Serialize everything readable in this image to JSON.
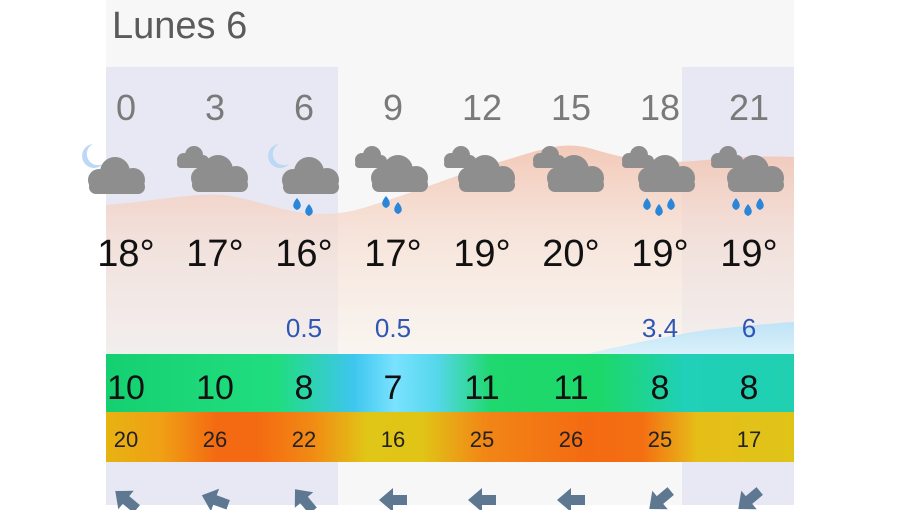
{
  "day_title": "Lunes 6",
  "colors": {
    "temp_band": "#f2c6b4",
    "rain_area": "#cfe8f6",
    "night_shade": "#e7e8f3",
    "rain_text": "#2e56b5",
    "arrow": "#5f7892"
  },
  "columns": [
    {
      "hour": "0",
      "icon": "partly-cloudy-night-icon",
      "temp": "18°",
      "rain": "",
      "wind": "10",
      "gust": "20",
      "direction": "wind-arrow-icon"
    },
    {
      "hour": "3",
      "icon": "cloudy-icon",
      "temp": "17°",
      "rain": "",
      "wind": "10",
      "gust": "26",
      "direction": "wind-arrow-icon"
    },
    {
      "hour": "6",
      "icon": "night-light-rain-icon",
      "temp": "16°",
      "rain": "0.5",
      "wind": "8",
      "gust": "22",
      "direction": "wind-arrow-icon"
    },
    {
      "hour": "9",
      "icon": "light-rain-icon",
      "temp": "17°",
      "rain": "0.5",
      "wind": "7",
      "gust": "16",
      "direction": "wind-arrow-icon"
    },
    {
      "hour": "12",
      "icon": "cloudy-icon",
      "temp": "19°",
      "rain": "",
      "wind": "11",
      "gust": "25",
      "direction": "wind-arrow-icon"
    },
    {
      "hour": "15",
      "icon": "cloudy-icon",
      "temp": "20°",
      "rain": "",
      "wind": "11",
      "gust": "26",
      "direction": "wind-arrow-icon"
    },
    {
      "hour": "18",
      "icon": "rain-icon",
      "temp": "19°",
      "rain": "3.4",
      "wind": "8",
      "gust": "25",
      "direction": "wind-arrow-icon"
    },
    {
      "hour": "21",
      "icon": "rain-icon",
      "temp": "19°",
      "rain": "6",
      "wind": "8",
      "gust": "17",
      "direction": "wind-arrow-icon"
    }
  ]
}
